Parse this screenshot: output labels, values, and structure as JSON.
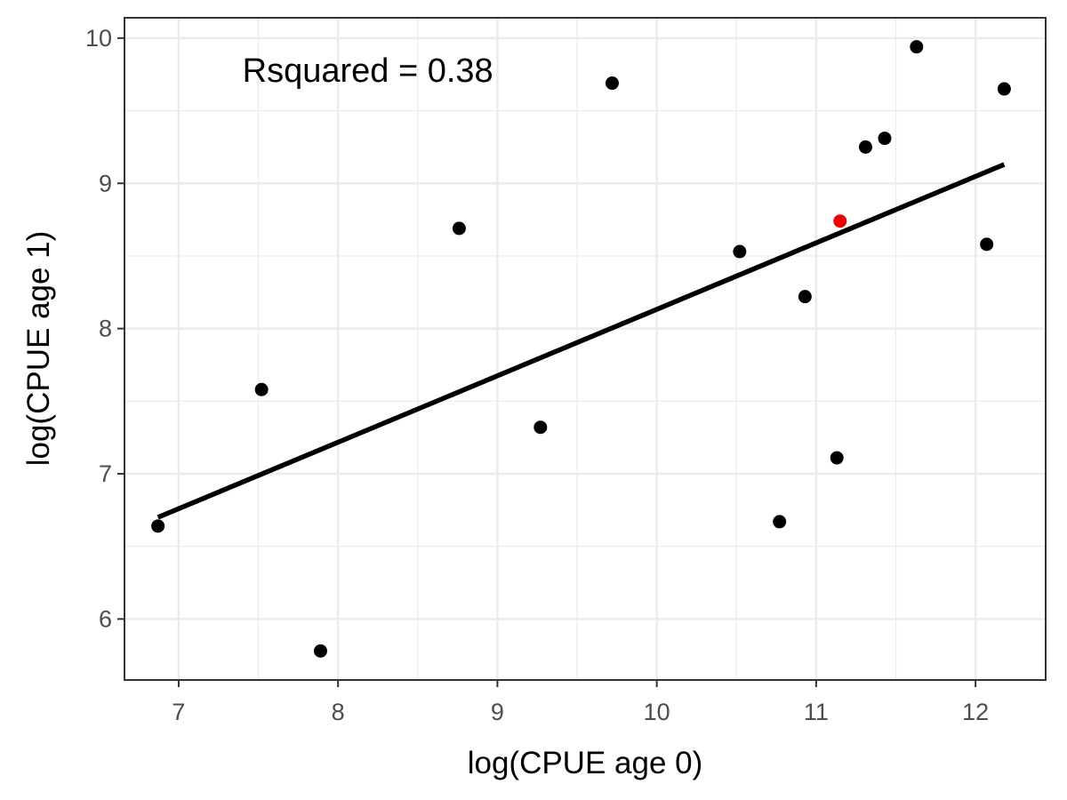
{
  "chart_data": {
    "type": "scatter",
    "title": "",
    "xlabel": "log(CPUE age 0)",
    "ylabel": "log(CPUE age 1)",
    "xlim": [
      6.66,
      12.44
    ],
    "ylim": [
      5.58,
      10.14
    ],
    "x_ticks": [
      7,
      8,
      9,
      10,
      11,
      12
    ],
    "y_ticks": [
      6,
      7,
      8,
      9,
      10
    ],
    "x_tick_labels": [
      "7",
      "8",
      "9",
      "10",
      "11",
      "12"
    ],
    "y_tick_labels": [
      "6",
      "7",
      "8",
      "9",
      "10"
    ],
    "grid": true,
    "annotation": {
      "text": "Rsquared = 0.38",
      "x": 7.4,
      "y": 9.78
    },
    "point_color": "#000000",
    "highlight_color": "#ee0000",
    "points": [
      {
        "x": 6.87,
        "y": 6.64
      },
      {
        "x": 7.52,
        "y": 7.58
      },
      {
        "x": 7.89,
        "y": 5.78
      },
      {
        "x": 8.76,
        "y": 8.69
      },
      {
        "x": 9.27,
        "y": 7.32
      },
      {
        "x": 9.72,
        "y": 9.69
      },
      {
        "x": 10.52,
        "y": 8.53
      },
      {
        "x": 10.77,
        "y": 6.67
      },
      {
        "x": 10.93,
        "y": 8.22
      },
      {
        "x": 11.13,
        "y": 7.11
      },
      {
        "x": 11.31,
        "y": 9.25
      },
      {
        "x": 11.43,
        "y": 9.31
      },
      {
        "x": 11.63,
        "y": 9.94
      },
      {
        "x": 12.07,
        "y": 8.58
      },
      {
        "x": 12.18,
        "y": 9.65
      }
    ],
    "highlight_points": [
      {
        "x": 11.15,
        "y": 8.74
      }
    ],
    "fit_line": {
      "x": [
        6.87,
        12.18
      ],
      "y": [
        6.7,
        9.13
      ]
    }
  }
}
